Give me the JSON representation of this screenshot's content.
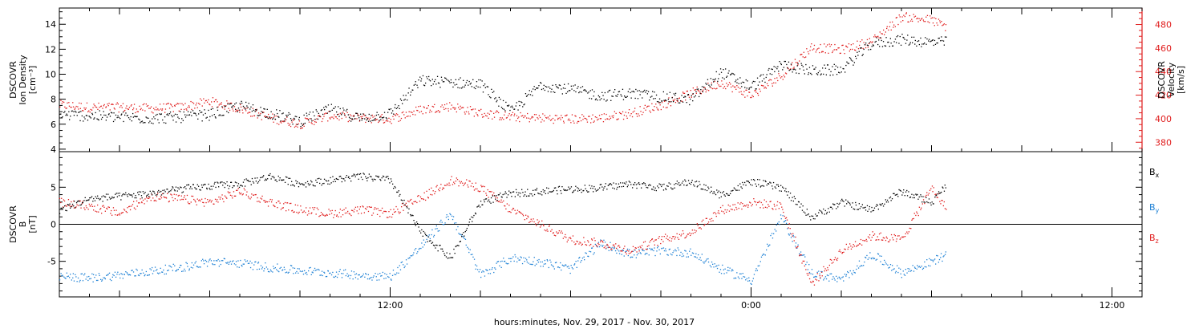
{
  "chart_data": [
    {
      "type": "scatter",
      "panel": "top",
      "x_start": "2017-11-29 01:00",
      "x_end": "2017-11-30 13:00",
      "ylabel_left": [
        "DSCOVR",
        "Ion Density",
        "[cm⁻³]"
      ],
      "ylabel_right": [
        "DSCOVR",
        "Velocity",
        "[km/s]"
      ],
      "ylim_left": [
        3.8,
        15.3
      ],
      "ylim_right": [
        372,
        494
      ],
      "yticks_left": [
        4,
        6,
        8,
        10,
        12,
        14
      ],
      "yticks_right": [
        380,
        400,
        420,
        440,
        460,
        480
      ],
      "series": [
        {
          "name": "Ion Density",
          "color": "#000000",
          "axis": "left",
          "points": [
            [
              "2017-11-29 01:00",
              6.8
            ],
            [
              "2017-11-29 02:00",
              6.7
            ],
            [
              "2017-11-29 03:00",
              6.6
            ],
            [
              "2017-11-29 04:00",
              6.5
            ],
            [
              "2017-11-29 05:00",
              6.6
            ],
            [
              "2017-11-29 06:00",
              6.8
            ],
            [
              "2017-11-29 07:00",
              7.5
            ],
            [
              "2017-11-29 08:00",
              6.9
            ],
            [
              "2017-11-29 09:00",
              6.3
            ],
            [
              "2017-11-29 10:00",
              7.2
            ],
            [
              "2017-11-29 11:00",
              6.5
            ],
            [
              "2017-11-29 12:00",
              6.9
            ],
            [
              "2017-11-29 13:00",
              9.5
            ],
            [
              "2017-11-29 14:00",
              9.4
            ],
            [
              "2017-11-29 15:00",
              9.2
            ],
            [
              "2017-11-29 16:00",
              7.0
            ],
            [
              "2017-11-29 17:00",
              9.2
            ],
            [
              "2017-11-29 18:00",
              8.8
            ],
            [
              "2017-11-29 19:00",
              8.3
            ],
            [
              "2017-11-29 20:00",
              8.5
            ],
            [
              "2017-11-29 21:00",
              8.2
            ],
            [
              "2017-11-29 22:00",
              8.0
            ],
            [
              "2017-11-29 23:00",
              10.2
            ],
            [
              "2017-11-30 00:00",
              9.0
            ],
            [
              "2017-11-30 01:00",
              10.8
            ],
            [
              "2017-11-30 02:00",
              10.3
            ],
            [
              "2017-11-30 03:00",
              10.4
            ],
            [
              "2017-11-30 04:00",
              12.5
            ],
            [
              "2017-11-30 05:00",
              12.8
            ],
            [
              "2017-11-30 06:00",
              12.6
            ],
            [
              "2017-11-30 06:30",
              12.6
            ]
          ]
        },
        {
          "name": "Velocity",
          "color": "#e01c1c",
          "axis": "right",
          "points": [
            [
              "2017-11-29 01:00",
              412
            ],
            [
              "2017-11-29 02:00",
              410
            ],
            [
              "2017-11-29 03:00",
              410
            ],
            [
              "2017-11-29 04:00",
              409
            ],
            [
              "2017-11-29 05:00",
              410
            ],
            [
              "2017-11-29 06:00",
              415
            ],
            [
              "2017-11-29 07:00",
              409
            ],
            [
              "2017-11-29 08:00",
              401
            ],
            [
              "2017-11-29 09:00",
              396
            ],
            [
              "2017-11-29 10:00",
              403
            ],
            [
              "2017-11-29 11:00",
              401
            ],
            [
              "2017-11-29 12:00",
              400
            ],
            [
              "2017-11-29 13:00",
              408
            ],
            [
              "2017-11-29 14:00",
              411
            ],
            [
              "2017-11-29 15:00",
              405
            ],
            [
              "2017-11-29 16:00",
              402
            ],
            [
              "2017-11-29 17:00",
              401
            ],
            [
              "2017-11-29 18:00",
              400
            ],
            [
              "2017-11-29 19:00",
              401
            ],
            [
              "2017-11-29 20:00",
              405
            ],
            [
              "2017-11-29 21:00",
              412
            ],
            [
              "2017-11-29 22:00",
              422
            ],
            [
              "2017-11-29 23:00",
              431
            ],
            [
              "2017-11-30 00:00",
              420
            ],
            [
              "2017-11-30 01:00",
              437
            ],
            [
              "2017-11-30 02:00",
              461
            ],
            [
              "2017-11-30 03:00",
              459
            ],
            [
              "2017-11-30 04:00",
              466
            ],
            [
              "2017-11-30 05:00",
              487
            ],
            [
              "2017-11-30 06:00",
              484
            ],
            [
              "2017-11-30 06:30",
              478
            ]
          ]
        }
      ]
    },
    {
      "type": "scatter",
      "panel": "bottom",
      "x_start": "2017-11-29 01:00",
      "x_end": "2017-11-30 13:00",
      "xticks": [
        "12:00",
        "0:00",
        "12:00"
      ],
      "xlabel": "hours:minutes, Nov. 29, 2017 - Nov. 30, 2017",
      "ylabel_left": [
        "DSCOVR",
        "B",
        "[nT]"
      ],
      "ylim": [
        -9.8,
        9.8
      ],
      "yticks": [
        -5,
        0,
        5
      ],
      "zero_line": true,
      "series": [
        {
          "name": "Bx",
          "color": "#000000",
          "points": [
            [
              "2017-11-29 01:00",
              2.0
            ],
            [
              "2017-11-29 02:00",
              3.5
            ],
            [
              "2017-11-29 03:00",
              3.8
            ],
            [
              "2017-11-29 04:00",
              4.2
            ],
            [
              "2017-11-29 05:00",
              4.8
            ],
            [
              "2017-11-29 06:00",
              5.2
            ],
            [
              "2017-11-29 07:00",
              5.5
            ],
            [
              "2017-11-29 08:00",
              6.5
            ],
            [
              "2017-11-29 09:00",
              5.5
            ],
            [
              "2017-11-29 10:00",
              6.0
            ],
            [
              "2017-11-29 11:00",
              6.5
            ],
            [
              "2017-11-29 12:00",
              6.0
            ],
            [
              "2017-11-29 13:00",
              -1.0
            ],
            [
              "2017-11-29 14:00",
              -4.5
            ],
            [
              "2017-11-29 15:00",
              3.0
            ],
            [
              "2017-11-29 16:00",
              4.2
            ],
            [
              "2017-11-29 17:00",
              4.5
            ],
            [
              "2017-11-29 18:00",
              4.8
            ],
            [
              "2017-11-29 19:00",
              5.0
            ],
            [
              "2017-11-29 20:00",
              5.5
            ],
            [
              "2017-11-29 21:00",
              5.0
            ],
            [
              "2017-11-29 22:00",
              5.8
            ],
            [
              "2017-11-29 23:00",
              4.0
            ],
            [
              "2017-11-30 00:00",
              5.8
            ],
            [
              "2017-11-30 01:00",
              5.0
            ],
            [
              "2017-11-30 02:00",
              1.0
            ],
            [
              "2017-11-30 03:00",
              3.0
            ],
            [
              "2017-11-30 04:00",
              2.0
            ],
            [
              "2017-11-30 05:00",
              4.5
            ],
            [
              "2017-11-30 06:00",
              3.0
            ],
            [
              "2017-11-30 06:30",
              5.5
            ]
          ]
        },
        {
          "name": "By",
          "color": "#1b7fd4",
          "points": [
            [
              "2017-11-29 01:00",
              -7.0
            ],
            [
              "2017-11-29 02:00",
              -7.2
            ],
            [
              "2017-11-29 03:00",
              -6.8
            ],
            [
              "2017-11-29 04:00",
              -6.3
            ],
            [
              "2017-11-29 05:00",
              -5.8
            ],
            [
              "2017-11-29 06:00",
              -5.0
            ],
            [
              "2017-11-29 07:00",
              -5.2
            ],
            [
              "2017-11-29 08:00",
              -5.8
            ],
            [
              "2017-11-29 09:00",
              -6.2
            ],
            [
              "2017-11-29 10:00",
              -6.5
            ],
            [
              "2017-11-29 11:00",
              -6.8
            ],
            [
              "2017-11-29 12:00",
              -7.0
            ],
            [
              "2017-11-29 13:00",
              -3.0
            ],
            [
              "2017-11-29 14:00",
              1.5
            ],
            [
              "2017-11-29 15:00",
              -6.8
            ],
            [
              "2017-11-29 16:00",
              -4.5
            ],
            [
              "2017-11-29 17:00",
              -5.0
            ],
            [
              "2017-11-29 18:00",
              -6.0
            ],
            [
              "2017-11-29 19:00",
              -2.5
            ],
            [
              "2017-11-29 20:00",
              -4.0
            ],
            [
              "2017-11-29 21:00",
              -3.5
            ],
            [
              "2017-11-29 22:00",
              -3.8
            ],
            [
              "2017-11-29 23:00",
              -6.0
            ],
            [
              "2017-11-30 00:00",
              -7.5
            ],
            [
              "2017-11-30 01:00",
              1.0
            ],
            [
              "2017-11-30 02:00",
              -6.5
            ],
            [
              "2017-11-30 03:00",
              -7.5
            ],
            [
              "2017-11-30 04:00",
              -4.0
            ],
            [
              "2017-11-30 05:00",
              -6.5
            ],
            [
              "2017-11-30 06:00",
              -5.0
            ],
            [
              "2017-11-30 06:30",
              -4.0
            ]
          ]
        },
        {
          "name": "Bz",
          "color": "#e01c1c",
          "points": [
            [
              "2017-11-29 01:00",
              3.0
            ],
            [
              "2017-11-29 02:00",
              2.5
            ],
            [
              "2017-11-29 03:00",
              1.5
            ],
            [
              "2017-11-29 04:00",
              3.8
            ],
            [
              "2017-11-29 05:00",
              3.5
            ],
            [
              "2017-11-29 06:00",
              3.0
            ],
            [
              "2017-11-29 07:00",
              4.5
            ],
            [
              "2017-11-29 08:00",
              3.0
            ],
            [
              "2017-11-29 09:00",
              2.0
            ],
            [
              "2017-11-29 10:00",
              1.5
            ],
            [
              "2017-11-29 11:00",
              2.0
            ],
            [
              "2017-11-29 12:00",
              1.5
            ],
            [
              "2017-11-29 13:00",
              3.5
            ],
            [
              "2017-11-29 14:00",
              6.0
            ],
            [
              "2017-11-29 15:00",
              5.0
            ],
            [
              "2017-11-29 16:00",
              2.0
            ],
            [
              "2017-11-29 17:00",
              0.0
            ],
            [
              "2017-11-29 18:00",
              -2.0
            ],
            [
              "2017-11-29 19:00",
              -2.5
            ],
            [
              "2017-11-29 20:00",
              -3.5
            ],
            [
              "2017-11-29 21:00",
              -2.0
            ],
            [
              "2017-11-29 22:00",
              -1.0
            ],
            [
              "2017-11-29 23:00",
              2.0
            ],
            [
              "2017-11-30 00:00",
              3.0
            ],
            [
              "2017-11-30 01:00",
              2.5
            ],
            [
              "2017-11-30 02:00",
              -8.0
            ],
            [
              "2017-11-30 03:00",
              -3.5
            ],
            [
              "2017-11-30 04:00",
              -1.5
            ],
            [
              "2017-11-30 05:00",
              -2.0
            ],
            [
              "2017-11-30 06:00",
              5.0
            ],
            [
              "2017-11-30 06:30",
              2.0
            ]
          ]
        }
      ]
    }
  ]
}
